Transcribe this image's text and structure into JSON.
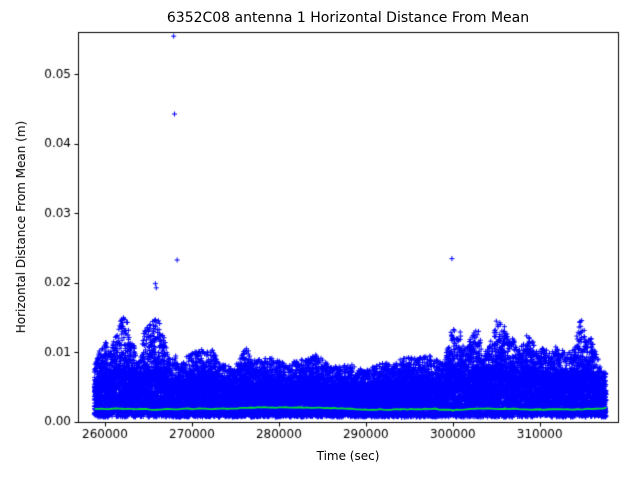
{
  "page": {
    "background": "#ffffff"
  },
  "chart_data": {
    "type": "scatter",
    "title": "6352C08 antenna 1 Horizontal Distance From Mean",
    "xlabel": "Time (sec)",
    "ylabel": "Horizontal Distance From Mean (m)",
    "xlim": [
      256900,
      319000
    ],
    "ylim": [
      0,
      0.0561
    ],
    "x_ticks": [
      260000,
      270000,
      280000,
      290000,
      300000,
      310000
    ],
    "x_tick_labels": [
      "260000",
      "270000",
      "280000",
      "290000",
      "300000",
      "310000"
    ],
    "y_ticks": [
      0.0,
      0.01,
      0.02,
      0.03,
      0.04,
      0.05
    ],
    "y_tick_labels": [
      "0.00",
      "0.01",
      "0.02",
      "0.03",
      "0.04",
      "0.05"
    ],
    "grid": false,
    "legend": "none",
    "marker": "+",
    "marker_color": "#0000ff",
    "x_range": [
      258800,
      317600
    ],
    "noise_floor": 0.0007,
    "dense_band_top": 0.0065,
    "envelope": [
      [
        258800,
        0.008
      ],
      [
        259500,
        0.011
      ],
      [
        260000,
        0.012
      ],
      [
        260500,
        0.01
      ],
      [
        261000,
        0.012
      ],
      [
        261500,
        0.013
      ],
      [
        262000,
        0.0155
      ],
      [
        262500,
        0.015
      ],
      [
        263000,
        0.013
      ],
      [
        263500,
        0.01
      ],
      [
        264000,
        0.009
      ],
      [
        264500,
        0.013
      ],
      [
        265000,
        0.014
      ],
      [
        265500,
        0.0145
      ],
      [
        266000,
        0.015
      ],
      [
        266500,
        0.0145
      ],
      [
        267000,
        0.011
      ],
      [
        267500,
        0.009
      ],
      [
        268000,
        0.01
      ],
      [
        268500,
        0.008
      ],
      [
        269000,
        0.009
      ],
      [
        270000,
        0.01
      ],
      [
        271000,
        0.0105
      ],
      [
        272000,
        0.01
      ],
      [
        272500,
        0.0105
      ],
      [
        273000,
        0.009
      ],
      [
        274000,
        0.008
      ],
      [
        275000,
        0.008
      ],
      [
        276300,
        0.011
      ],
      [
        277000,
        0.009
      ],
      [
        278000,
        0.009
      ],
      [
        279000,
        0.0095
      ],
      [
        280000,
        0.009
      ],
      [
        281000,
        0.008
      ],
      [
        282000,
        0.009
      ],
      [
        283000,
        0.009
      ],
      [
        284000,
        0.01
      ],
      [
        284500,
        0.0095
      ],
      [
        285000,
        0.009
      ],
      [
        286000,
        0.008
      ],
      [
        287000,
        0.008
      ],
      [
        288000,
        0.0085
      ],
      [
        289000,
        0.008
      ],
      [
        290000,
        0.0075
      ],
      [
        291000,
        0.008
      ],
      [
        292000,
        0.009
      ],
      [
        293000,
        0.008
      ],
      [
        294000,
        0.009
      ],
      [
        295000,
        0.0095
      ],
      [
        296000,
        0.009
      ],
      [
        297000,
        0.01
      ],
      [
        298000,
        0.009
      ],
      [
        299000,
        0.0085
      ],
      [
        299800,
        0.013
      ],
      [
        300300,
        0.0135
      ],
      [
        301000,
        0.013
      ],
      [
        301500,
        0.01
      ],
      [
        302000,
        0.012
      ],
      [
        302500,
        0.013
      ],
      [
        303000,
        0.0135
      ],
      [
        303500,
        0.01
      ],
      [
        304000,
        0.011
      ],
      [
        304500,
        0.012
      ],
      [
        305000,
        0.015
      ],
      [
        305500,
        0.0145
      ],
      [
        306000,
        0.014
      ],
      [
        306500,
        0.012
      ],
      [
        307000,
        0.012
      ],
      [
        307500,
        0.01
      ],
      [
        308000,
        0.012
      ],
      [
        308500,
        0.0125
      ],
      [
        309000,
        0.012
      ],
      [
        310000,
        0.01
      ],
      [
        310500,
        0.011
      ],
      [
        311000,
        0.01
      ],
      [
        312000,
        0.011
      ],
      [
        313000,
        0.01
      ],
      [
        314000,
        0.0105
      ],
      [
        314500,
        0.015
      ],
      [
        315000,
        0.0145
      ],
      [
        315500,
        0.012
      ],
      [
        316000,
        0.012
      ],
      [
        317000,
        0.008
      ],
      [
        317600,
        0.007
      ]
    ],
    "outliers": [
      [
        267900,
        0.0555
      ],
      [
        268000,
        0.0443
      ],
      [
        268300,
        0.0233
      ],
      [
        265800,
        0.0199
      ],
      [
        265900,
        0.0193
      ],
      [
        299900,
        0.0235
      ]
    ],
    "trend_line": {
      "color": "#00dd33",
      "points": [
        [
          258800,
          0.0019
        ],
        [
          262000,
          0.0019
        ],
        [
          266000,
          0.0018
        ],
        [
          270000,
          0.0019
        ],
        [
          274000,
          0.0019
        ],
        [
          278000,
          0.0021
        ],
        [
          282000,
          0.0021
        ],
        [
          286000,
          0.002
        ],
        [
          290000,
          0.0018
        ],
        [
          294000,
          0.0018
        ],
        [
          298000,
          0.0019
        ],
        [
          300000,
          0.0017
        ],
        [
          302000,
          0.0019
        ],
        [
          306000,
          0.0019
        ],
        [
          310000,
          0.0018
        ],
        [
          314000,
          0.0018
        ],
        [
          317600,
          0.002
        ]
      ]
    }
  }
}
